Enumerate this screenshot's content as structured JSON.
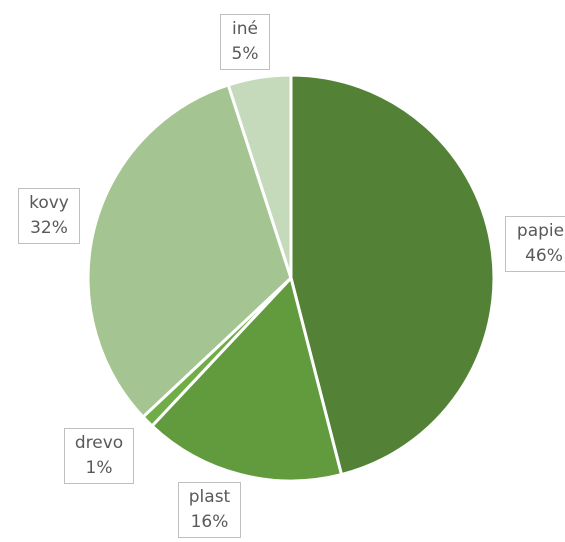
{
  "chart_data": {
    "type": "pie",
    "title": "",
    "start_angle_deg": 0,
    "direction": "clockwise",
    "slices": [
      {
        "name": "papier",
        "value": 46,
        "label": "46%",
        "color": "#538135"
      },
      {
        "name": "plast",
        "value": 16,
        "label": "16%",
        "color": "#619b3d"
      },
      {
        "name": "drevo",
        "value": 1,
        "label": "1%",
        "color": "#70ad47"
      },
      {
        "name": "kovy",
        "value": 32,
        "label": "32%",
        "color": "#a4c591"
      },
      {
        "name": "iné",
        "value": 5,
        "label": "5%",
        "color": "#c5dabb"
      }
    ]
  }
}
